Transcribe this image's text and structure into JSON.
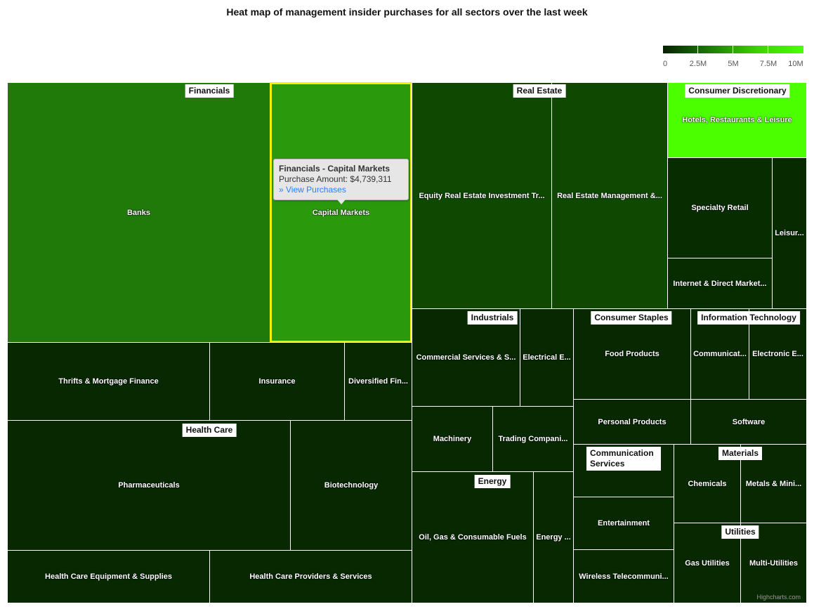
{
  "title": "Heat map of management insider purchases for all sectors over the last week",
  "legend": {
    "ticks": [
      "0",
      "2.5M",
      "5M",
      "7.5M",
      "10M"
    ],
    "colors": [
      "#062000",
      "#4cff00"
    ]
  },
  "tooltip": {
    "header": "Financials - Capital Markets",
    "line": "Purchase Amount: $4,739,311",
    "link": "» View Purchases"
  },
  "credits": "Highcharts.com",
  "chart_data": {
    "type": "treemap",
    "colorAxis": {
      "min": 0,
      "max": 10000000,
      "ticks": [
        "0",
        "2.5M",
        "5M",
        "7.5M",
        "10M"
      ]
    },
    "sectors": [
      {
        "name": "Financials",
        "children": [
          {
            "name": "Banks",
            "color": "#1f7a0a"
          },
          {
            "name": "Capital Markets",
            "color": "#2a9a0c",
            "value": 4739311
          },
          {
            "name": "Thrifts & Mortgage Finance",
            "color": "#072800"
          },
          {
            "name": "Insurance",
            "color": "#072800"
          },
          {
            "name": "Diversified Fin...",
            "color": "#072800"
          }
        ]
      },
      {
        "name": "Health Care",
        "children": [
          {
            "name": "Pharmaceuticals",
            "color": "#072800"
          },
          {
            "name": "Biotechnology",
            "color": "#072800"
          },
          {
            "name": "Health Care Equipment & Supplies",
            "color": "#072800"
          },
          {
            "name": "Health Care Providers & Services",
            "color": "#072800"
          }
        ]
      },
      {
        "name": "Real Estate",
        "children": [
          {
            "name": "Equity Real Estate Investment Tr...",
            "color": "#0f4800"
          },
          {
            "name": "Real Estate Management &...",
            "color": "#0f4800"
          }
        ]
      },
      {
        "name": "Consumer Discretionary",
        "children": [
          {
            "name": "Hotels, Restaurants & Leisure",
            "color": "#4cff00"
          },
          {
            "name": "Specialty Retail",
            "color": "#072c00"
          },
          {
            "name": "Internet & Direct Market...",
            "color": "#072c00"
          },
          {
            "name": "Leisur...",
            "color": "#072a00"
          }
        ]
      },
      {
        "name": "Industrials",
        "children": [
          {
            "name": "Commercial Services & S...",
            "color": "#072800"
          },
          {
            "name": "Electrical E...",
            "color": "#072800"
          },
          {
            "name": "Machinery",
            "color": "#072800"
          },
          {
            "name": "Trading Compani...",
            "color": "#072800"
          }
        ]
      },
      {
        "name": "Energy",
        "children": [
          {
            "name": "Oil, Gas & Consumable Fuels",
            "color": "#072800"
          },
          {
            "name": "Energy ...",
            "color": "#072800"
          }
        ]
      },
      {
        "name": "Consumer Staples",
        "children": [
          {
            "name": "Food Products",
            "color": "#072800"
          },
          {
            "name": "Personal Products",
            "color": "#072800"
          }
        ]
      },
      {
        "name": "Information Technology",
        "children": [
          {
            "name": "Communicat...",
            "color": "#072800"
          },
          {
            "name": "Electronic E...",
            "color": "#072800"
          },
          {
            "name": "Software",
            "color": "#072800"
          }
        ]
      },
      {
        "name": "Communication Services",
        "children": [
          {
            "name": "",
            "color": "#072800"
          },
          {
            "name": "Entertainment",
            "color": "#072800"
          },
          {
            "name": "Wireless Telecommuni...",
            "color": "#072800"
          }
        ]
      },
      {
        "name": "Materials",
        "children": [
          {
            "name": "Chemicals",
            "color": "#072800"
          },
          {
            "name": "Metals & Mini...",
            "color": "#072800"
          }
        ]
      },
      {
        "name": "Utilities",
        "children": [
          {
            "name": "Gas Utilities",
            "color": "#072800"
          },
          {
            "name": "Multi-Utilities",
            "color": "#072800"
          }
        ]
      }
    ]
  }
}
